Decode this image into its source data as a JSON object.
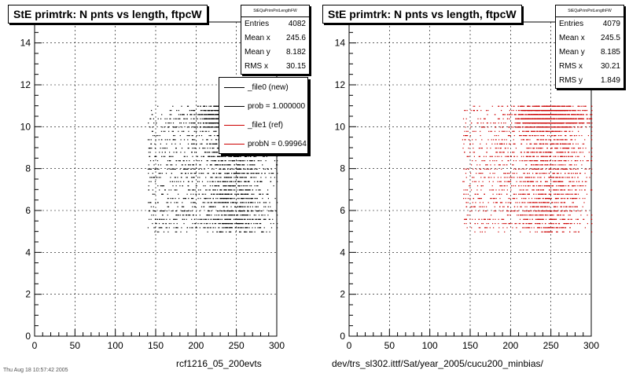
{
  "left": {
    "title": "StE primtrk: N pnts vs length, ftpcW",
    "stats": {
      "name": "StEQaPrimPntLengthFW",
      "rows": [
        {
          "label": "Entries",
          "value": "4082"
        },
        {
          "label": "Mean x",
          "value": "245.6"
        },
        {
          "label": "Mean y",
          "value": "8.182"
        },
        {
          "label": "RMS x",
          "value": "30.15"
        }
      ]
    },
    "legend": [
      {
        "label": "_file0 (new)",
        "color": "#000000"
      },
      {
        "label": "prob = 1.000000",
        "color": "#000000"
      },
      {
        "label": "_file1 (ref)",
        "color": "#cc0000"
      },
      {
        "label": "probN = 0.99964",
        "color": "#cc0000"
      }
    ],
    "footer": "rcf1216_05_200evts",
    "date": "Thu Aug 18 10:57:42 2005"
  },
  "right": {
    "title": "StE primtrk: N pnts vs length, ftpcW",
    "stats": {
      "name": "StEQaPrimPntLengthFW",
      "rows": [
        {
          "label": "Entries",
          "value": "4079"
        },
        {
          "label": "Mean x",
          "value": "245.5"
        },
        {
          "label": "Mean y",
          "value": "8.185"
        },
        {
          "label": "RMS x",
          "value": "30.21"
        },
        {
          "label": "RMS y",
          "value": "1.849"
        }
      ]
    },
    "footer": "dev/trs_sl302.ittf/Sat/year_2005/cucu200_minbias/"
  },
  "chart_data": [
    {
      "type": "scatter",
      "title": "StE primtrk: N pnts vs length, ftpcW",
      "xlim": [
        0,
        300
      ],
      "ylim": [
        0,
        15
      ],
      "xticks": [
        0,
        50,
        100,
        150,
        200,
        250,
        300
      ],
      "yticks": [
        0,
        2,
        4,
        6,
        8,
        10,
        12,
        14
      ],
      "grid": true,
      "series": [
        {
          "name": "_file0 (new)",
          "color": "#000000",
          "entries": 4082,
          "mean_x": 245.6,
          "mean_y": 8.182,
          "rms_x": 30.15,
          "x_range": [
            140,
            300
          ],
          "y_range": [
            5,
            11
          ]
        }
      ]
    },
    {
      "type": "scatter",
      "title": "StE primtrk: N pnts vs length, ftpcW",
      "xlim": [
        0,
        300
      ],
      "ylim": [
        0,
        15
      ],
      "xticks": [
        0,
        50,
        100,
        150,
        200,
        250,
        300
      ],
      "yticks": [
        0,
        2,
        4,
        6,
        8,
        10,
        12,
        14
      ],
      "grid": true,
      "series": [
        {
          "name": "_file1 (ref)",
          "color": "#cc0000",
          "entries": 4079,
          "mean_x": 245.5,
          "mean_y": 8.185,
          "rms_x": 30.21,
          "rms_y": 1.849,
          "x_range": [
            140,
            300
          ],
          "y_range": [
            5,
            11
          ]
        }
      ]
    }
  ]
}
